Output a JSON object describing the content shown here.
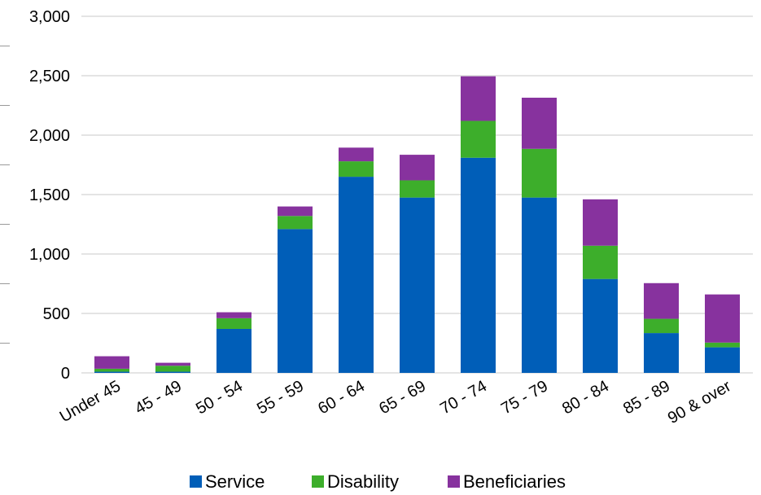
{
  "chart_data": {
    "type": "bar",
    "stacked": true,
    "categories": [
      "Under 45",
      "45 - 49",
      "50 - 54",
      "55 - 59",
      "60 - 64",
      "65 - 69",
      "70 - 74",
      "75 - 79",
      "80 - 84",
      "85 - 89",
      "90 & over"
    ],
    "series": [
      {
        "name": "Service",
        "color": "#005EB8",
        "values": [
          10,
          10,
          370,
          1210,
          1650,
          1475,
          1810,
          1475,
          790,
          335,
          215
        ]
      },
      {
        "name": "Disability",
        "color": "#3DAE2B",
        "values": [
          25,
          50,
          90,
          110,
          130,
          145,
          310,
          410,
          280,
          120,
          40
        ]
      },
      {
        "name": "Beneficiaries",
        "color": "#87329E",
        "values": [
          105,
          25,
          50,
          80,
          115,
          215,
          375,
          430,
          390,
          300,
          405
        ]
      }
    ],
    "ylim": [
      0,
      3000
    ],
    "yticks": [
      0,
      500,
      1000,
      1500,
      2000,
      2500,
      3000
    ],
    "ytick_labels": [
      "0",
      "500",
      "1,000",
      "1,500",
      "2,000",
      "2,500",
      "3,000"
    ],
    "title": "",
    "xlabel": "",
    "ylabel": "",
    "grid": true,
    "legend_position": "bottom"
  }
}
